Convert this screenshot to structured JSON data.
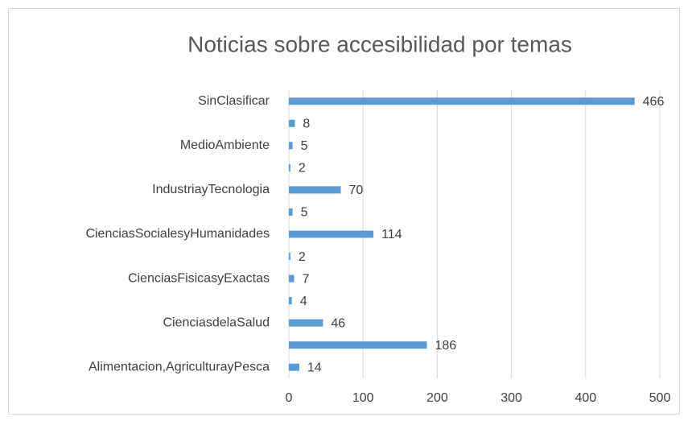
{
  "chart_data": {
    "type": "barh",
    "title": "Noticias sobre accesibilidad por temas",
    "categories": [
      "Alimentacion,AgriculturayPesca",
      null,
      "CienciasdelaSalud",
      null,
      "CienciasFisicasyExactas",
      null,
      "CienciasSocialesyHumanidades",
      null,
      "IndustriayTecnologia",
      null,
      "MedioAmbiente",
      null,
      "SinClasificar"
    ],
    "values": [
      14,
      186,
      46,
      4,
      7,
      2,
      114,
      5,
      70,
      2,
      5,
      8,
      466
    ],
    "color": "#5b9bd5",
    "xlim": [
      0,
      500
    ],
    "xticks": [
      0,
      100,
      200,
      300,
      400,
      500
    ],
    "grid": true
  }
}
